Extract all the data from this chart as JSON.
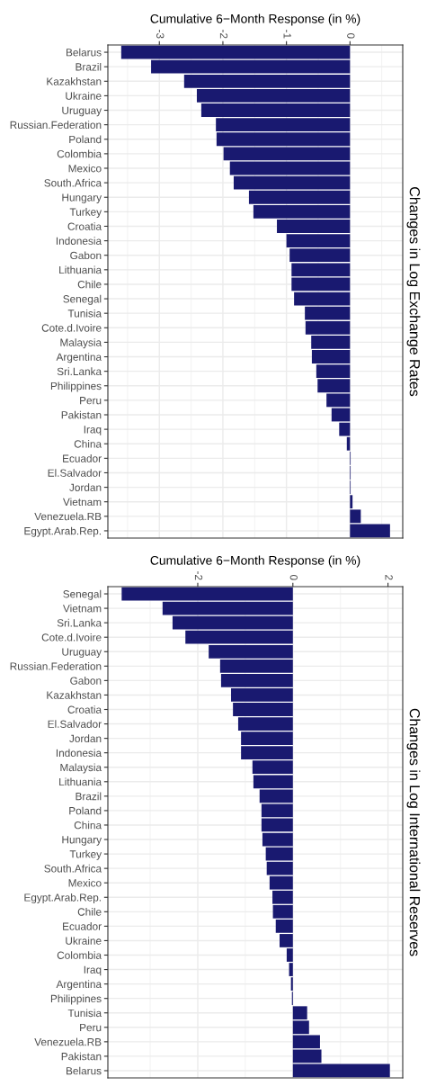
{
  "chart_data": [
    {
      "type": "bar",
      "orientation": "horizontal",
      "xlabel": "Cumulative 6−Month Response (in %)",
      "ylabel": "Changes in Log Exchange Rates",
      "categories": [
        "Belarus",
        "Brazil",
        "Kazakhstan",
        "Ukraine",
        "Uruguay",
        "Russian.Federation",
        "Poland",
        "Colombia",
        "Mexico",
        "South.Africa",
        "Hungary",
        "Turkey",
        "Croatia",
        "Indonesia",
        "Gabon",
        "Lithuania",
        "Chile",
        "Senegal",
        "Tunisia",
        "Cote.d.Ivoire",
        "Malaysia",
        "Argentina",
        "Sri.Lanka",
        "Philippines",
        "Peru",
        "Pakistan",
        "Iraq",
        "China",
        "Ecuador",
        "El.Salvador",
        "Jordan",
        "Vietnam",
        "Venezuela.RB",
        "Egypt.Arab.Rep."
      ],
      "values": [
        -3.6,
        -3.13,
        -2.61,
        -2.41,
        -2.34,
        -2.11,
        -2.1,
        -1.99,
        -1.89,
        -1.83,
        -1.59,
        -1.52,
        -1.15,
        -1.0,
        -0.95,
        -0.92,
        -0.92,
        -0.88,
        -0.71,
        -0.7,
        -0.61,
        -0.6,
        -0.53,
        -0.51,
        -0.37,
        -0.29,
        -0.17,
        -0.05,
        0.01,
        0.01,
        0.01,
        0.04,
        0.17,
        0.63
      ],
      "color": "#191970",
      "xlim": [
        -3.81,
        0.83
      ],
      "xticks": [
        -3,
        -2,
        -1,
        0
      ],
      "grid": true
    },
    {
      "type": "bar",
      "orientation": "horizontal",
      "xlabel": "Cumulative 6−Month Response (in %)",
      "ylabel": "Changes in Log International Reserves",
      "categories": [
        "Senegal",
        "Vietnam",
        "Sri.Lanka",
        "Cote.d.Ivoire",
        "Uruguay",
        "Russian.Federation",
        "Gabon",
        "Kazakhstan",
        "Croatia",
        "El.Salvador",
        "Jordan",
        "Indonesia",
        "Malaysia",
        "Lithuania",
        "Brazil",
        "Poland",
        "China",
        "Hungary",
        "Turkey",
        "South.Africa",
        "Mexico",
        "Egypt.Arab.Rep.",
        "Chile",
        "Ecuador",
        "Ukraine",
        "Colombia",
        "Iraq",
        "Argentina",
        "Philippines",
        "Tunisia",
        "Peru",
        "Venezuela.RB",
        "Pakistan",
        "Belarus"
      ],
      "values": [
        -3.6,
        -2.74,
        -2.53,
        -2.26,
        -1.77,
        -1.53,
        -1.51,
        -1.3,
        -1.26,
        -1.15,
        -1.09,
        -1.09,
        -0.85,
        -0.83,
        -0.7,
        -0.66,
        -0.66,
        -0.64,
        -0.57,
        -0.55,
        -0.49,
        -0.43,
        -0.42,
        -0.36,
        -0.28,
        -0.13,
        -0.08,
        -0.04,
        -0.02,
        0.3,
        0.34,
        0.57,
        0.6,
        2.04
      ],
      "color": "#191970",
      "xlim": [
        -3.89,
        2.31
      ],
      "xticks": [
        -2,
        0,
        2
      ],
      "grid": true
    }
  ]
}
